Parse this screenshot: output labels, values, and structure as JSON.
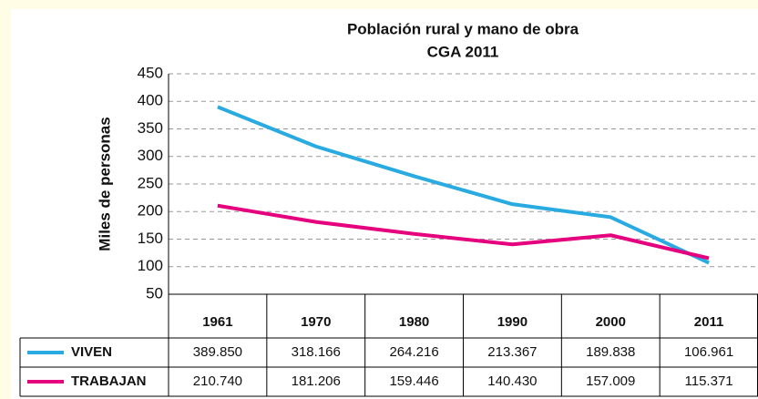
{
  "chart_data": {
    "type": "line",
    "title": "Población rural y mano de obra",
    "subtitle": "CGA 2011",
    "y_label": "Miles de personas",
    "categories": [
      "1961",
      "1970",
      "1980",
      "1990",
      "2000",
      "2011"
    ],
    "series": [
      {
        "name": "VIVEN",
        "color": "#29abe2",
        "values": [
          389.85,
          318.166,
          264.216,
          213.367,
          189.838,
          106.961
        ],
        "value_labels": [
          "389.850",
          "318.166",
          "264.216",
          "213.367",
          "189.838",
          "106.961"
        ]
      },
      {
        "name": "TRABAJAN",
        "color": "#e5007e",
        "values": [
          210.74,
          181.206,
          159.446,
          140.43,
          157.009,
          115.371
        ],
        "value_labels": [
          "210.740",
          "181.206",
          "159.446",
          "140.430",
          "157.009",
          "115.371"
        ]
      }
    ],
    "ylim": [
      50,
      450
    ],
    "yticks": [
      50,
      100,
      150,
      200,
      250,
      300,
      350,
      400,
      450
    ],
    "grid": true
  }
}
